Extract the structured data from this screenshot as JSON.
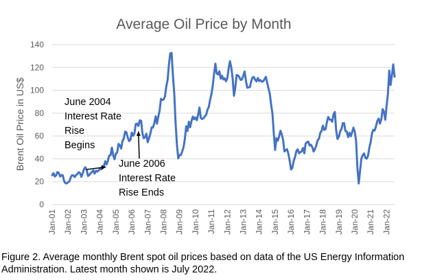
{
  "chart_data": {
    "type": "line",
    "title": "Average Oil Price by Month",
    "xlabel": "",
    "ylabel": "Brent Oil Price in US$",
    "ylim": [
      0,
      140
    ],
    "yticks": [
      0,
      20,
      40,
      60,
      80,
      100,
      120,
      140
    ],
    "grid": true,
    "x_tick_labels": [
      "Jan-01",
      "Jan-02",
      "Jan-03",
      "Jan-04",
      "Jan-05",
      "Jan-06",
      "Jan-07",
      "Jan-08",
      "Jan-09",
      "Jan-10",
      "Jan-11",
      "Jan-12",
      "Jan-13",
      "Jan-14",
      "Jan-15",
      "Jan-16",
      "Jan-17",
      "Jan-18",
      "Jan-19",
      "Jan-20",
      "Jan-21",
      "Jan-22"
    ],
    "series": [
      {
        "name": "Brent Oil Price",
        "color": "#4472C4",
        "start": "Jan-01",
        "end": "Jul-22",
        "values": [
          25.6,
          27.5,
          24.5,
          25.6,
          28.4,
          27.7,
          24.5,
          25.8,
          25.6,
          20.5,
          18.7,
          18.5,
          19.4,
          20.3,
          23.7,
          25.7,
          25.4,
          24.1,
          25.7,
          26.7,
          28.3,
          27.5,
          24.3,
          27.0,
          31.0,
          32.6,
          30.3,
          25.0,
          25.8,
          27.6,
          28.4,
          29.8,
          27.1,
          29.6,
          28.8,
          29.8,
          31.2,
          30.9,
          33.8,
          33.4,
          37.9,
          35.2,
          38.2,
          42.8,
          43.2,
          49.8,
          43.1,
          39.6,
          44.5,
          45.5,
          53.1,
          51.9,
          49.0,
          55.6,
          57.9,
          63.9,
          63.1,
          58.5,
          55.5,
          56.8,
          62.9,
          60.2,
          62.3,
          70.4,
          70.8,
          68.8,
          73.7,
          73.4,
          62.5,
          58.1,
          58.8,
          62.0,
          54.5,
          57.8,
          62.1,
          67.5,
          67.4,
          71.3,
          77.2,
          70.8,
          77.1,
          82.3,
          92.5,
          91.5,
          91.9,
          94.7,
          103.4,
          109.0,
          122.7,
          132.3,
          132.7,
          113.2,
          97.2,
          71.6,
          52.5,
          40.4,
          43.4,
          43.3,
          46.5,
          50.2,
          57.4,
          68.6,
          64.4,
          72.5,
          67.7,
          73.2,
          77.0,
          74.7,
          76.2,
          73.8,
          78.8,
          84.9,
          75.9,
          74.8,
          75.6,
          77.1,
          78.4,
          82.9,
          85.3,
          91.5,
          96.5,
          104.0,
          114.6,
          123.3,
          114.7,
          113.8,
          116.7,
          110.2,
          112.8,
          109.5,
          110.5,
          107.9,
          110.7,
          119.3,
          125.5,
          119.8,
          110.3,
          95.2,
          102.6,
          113.4,
          113.0,
          111.7,
          109.1,
          109.5,
          112.9,
          116.5,
          108.5,
          102.3,
          102.6,
          102.9,
          107.9,
          111.3,
          111.6,
          109.1,
          107.8,
          110.8,
          108.1,
          108.9,
          107.5,
          107.8,
          109.7,
          111.8,
          106.8,
          101.6,
          97.1,
          87.4,
          79.4,
          62.3,
          47.8,
          58.1,
          55.9,
          59.5,
          64.6,
          61.5,
          56.6,
          46.5,
          47.6,
          48.4,
          44.3,
          38.0,
          30.7,
          32.2,
          38.2,
          41.6,
          46.7,
          48.3,
          44.9,
          45.8,
          46.6,
          49.5,
          44.8,
          53.3,
          54.6,
          55.0,
          51.6,
          52.3,
          50.3,
          46.4,
          48.5,
          51.7,
          56.2,
          57.5,
          62.7,
          64.4,
          69.1,
          65.3,
          66.0,
          72.1,
          76.7,
          74.4,
          74.3,
          72.5,
          78.9,
          81.0,
          64.8,
          57.4,
          59.4,
          64.0,
          66.1,
          71.2,
          71.3,
          64.2,
          63.9,
          59.0,
          62.8,
          59.7,
          63.2,
          67.3,
          63.7,
          55.7,
          32.0,
          18.4,
          29.4,
          40.3,
          43.2,
          44.7,
          40.9,
          40.2,
          42.7,
          49.9,
          54.8,
          62.3,
          65.4,
          64.8,
          68.5,
          73.1,
          75.2,
          70.8,
          74.5,
          83.5,
          81.1,
          74.2,
          86.5,
          97.1,
          117.3,
          104.6,
          113.3,
          122.7,
          111.9
        ]
      }
    ],
    "annotations": [
      {
        "lines": [
          "June 2004",
          "Interest Rate",
          "Rise",
          "Begins"
        ],
        "date": "Jun-04"
      },
      {
        "lines": [
          "June 2006",
          "Interest Rate",
          "Rise Ends"
        ],
        "date": "Jun-06"
      }
    ]
  },
  "caption": "Figure 2. Average monthly Brent spot oil prices based on data of the US Energy Information Administration. Latest month shown is July 2022."
}
